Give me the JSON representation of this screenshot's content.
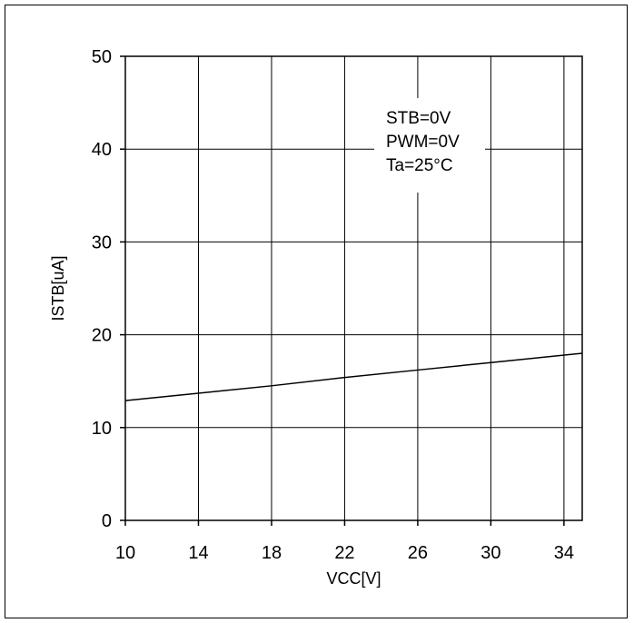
{
  "chart_data": {
    "type": "line",
    "title": "",
    "xlabel": "VCC[V]",
    "ylabel": "ISTB[uA]",
    "xlim": [
      10,
      35
    ],
    "ylim": [
      0,
      50
    ],
    "xticks": [
      10,
      14,
      18,
      22,
      26,
      30,
      34
    ],
    "yticks": [
      0,
      10,
      20,
      30,
      40,
      50
    ],
    "grid": true,
    "series": [
      {
        "color": "#000000",
        "x": [
          10,
          14,
          18,
          22,
          26,
          30,
          35
        ],
        "y": [
          12.9,
          13.7,
          14.5,
          15.4,
          16.2,
          17.0,
          18.0
        ]
      }
    ],
    "annotations": [
      "STB=0V",
      "PWM=0V",
      "Ta=25°C"
    ]
  }
}
